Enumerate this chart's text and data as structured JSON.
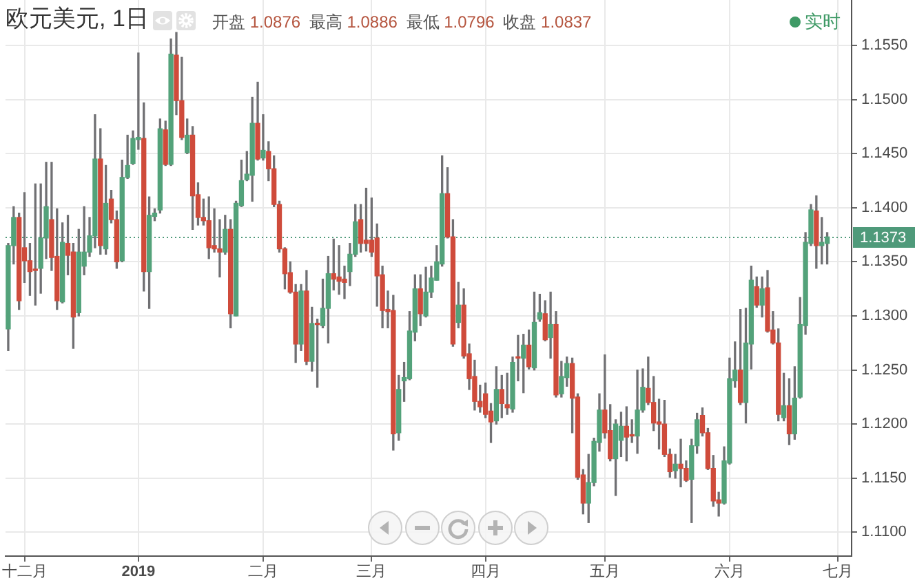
{
  "chart_data": {
    "type": "candlestick",
    "title": "欧元美元, 1日",
    "subtitle": "开盘 1.0876 最高 1.0886 最低 1.0796 收盘 1.0837",
    "annotations": [
      "实时"
    ],
    "categories": [
      null,
      null,
      null,
      "十二月",
      null,
      null,
      null,
      null,
      null,
      null,
      null,
      null,
      null,
      null,
      null,
      null,
      null,
      null,
      null,
      null,
      null,
      null,
      null,
      null,
      "2019",
      null,
      null,
      null,
      null,
      null,
      null,
      null,
      null,
      null,
      null,
      null,
      null,
      null,
      null,
      null,
      null,
      null,
      null,
      null,
      null,
      null,
      null,
      "二月",
      null,
      null,
      null,
      null,
      null,
      null,
      null,
      null,
      null,
      null,
      null,
      null,
      null,
      null,
      null,
      null,
      null,
      null,
      null,
      "三月",
      null,
      null,
      null,
      null,
      null,
      null,
      null,
      null,
      null,
      null,
      null,
      null,
      null,
      null,
      null,
      null,
      null,
      null,
      null,
      null,
      "四月",
      null,
      null,
      null,
      null,
      null,
      null,
      null,
      null,
      null,
      null,
      null,
      null,
      null,
      null,
      null,
      null,
      null,
      null,
      null,
      null,
      null,
      "五月",
      null,
      null,
      null,
      null,
      null,
      null,
      null,
      null,
      null,
      null,
      null,
      null,
      null,
      null,
      null,
      null,
      null,
      null,
      null,
      null,
      null,
      null,
      "六月",
      null,
      null,
      null,
      null,
      null,
      null,
      null,
      null,
      null,
      null,
      null,
      null,
      null,
      null,
      null,
      null,
      null,
      null,
      null,
      "七月",
      null,
      null
    ],
    "ohlc": [
      [
        1.1288,
        1.1367,
        1.1268,
        1.1365
      ],
      [
        1.1365,
        1.1401,
        1.1348,
        1.1391
      ],
      [
        1.1391,
        1.1395,
        1.1306,
        1.1314
      ],
      [
        1.1363,
        1.1414,
        1.1331,
        1.1351
      ],
      [
        1.1351,
        1.1367,
        1.1319,
        1.1341
      ],
      [
        1.1343,
        1.1422,
        1.131,
        1.1342
      ],
      [
        1.1344,
        1.1422,
        1.1321,
        1.1372
      ],
      [
        1.1372,
        1.1442,
        1.1353,
        1.1401
      ],
      [
        1.1389,
        1.1442,
        1.1342,
        1.1354
      ],
      [
        1.1355,
        1.1399,
        1.1306,
        1.1314
      ],
      [
        1.1313,
        1.1386,
        1.1312,
        1.1368
      ],
      [
        1.1367,
        1.1393,
        1.1338,
        1.1356
      ],
      [
        1.1359,
        1.1367,
        1.127,
        1.1299
      ],
      [
        1.1303,
        1.138,
        1.13,
        1.1359
      ],
      [
        1.1346,
        1.1401,
        1.1338,
        1.1359
      ],
      [
        1.1359,
        1.1391,
        1.1355,
        1.1374
      ],
      [
        1.1374,
        1.1486,
        1.1363,
        1.1445
      ],
      [
        1.1445,
        1.1473,
        1.1357,
        1.1365
      ],
      [
        1.1362,
        1.1439,
        1.1357,
        1.1404
      ],
      [
        1.1408,
        1.1416,
        1.1386,
        1.1389
      ],
      [
        1.1389,
        1.1397,
        1.1344,
        1.135
      ],
      [
        1.1351,
        1.1444,
        1.135,
        1.1428
      ],
      [
        1.1428,
        1.1467,
        1.1427,
        1.1439
      ],
      [
        1.1441,
        1.1471,
        1.144,
        1.1464
      ],
      [
        1.1463,
        1.1543,
        1.1454,
        1.1465
      ],
      [
        1.1464,
        1.1497,
        1.1323,
        1.1341
      ],
      [
        1.1341,
        1.141,
        1.1307,
        1.1393
      ],
      [
        1.1392,
        1.1399,
        1.1388,
        1.1395
      ],
      [
        1.1398,
        1.1482,
        1.1395,
        1.1473
      ],
      [
        1.1472,
        1.148,
        1.1439,
        1.144
      ],
      [
        1.144,
        1.1556,
        1.1439,
        1.1542
      ],
      [
        1.1541,
        1.1562,
        1.1486,
        1.1499
      ],
      [
        1.1499,
        1.1539,
        1.1463,
        1.1465
      ],
      [
        1.1451,
        1.1482,
        1.145,
        1.1467
      ],
      [
        1.1467,
        1.1475,
        1.138,
        1.1411
      ],
      [
        1.1412,
        1.1423,
        1.1384,
        1.1391
      ],
      [
        1.1391,
        1.1408,
        1.1384,
        1.1388
      ],
      [
        1.1388,
        1.141,
        1.1353,
        1.1363
      ],
      [
        1.1365,
        1.1399,
        1.1359,
        1.1362
      ],
      [
        1.1362,
        1.1389,
        1.1336,
        1.1359
      ],
      [
        1.1359,
        1.1393,
        1.1357,
        1.138
      ],
      [
        1.138,
        1.1389,
        1.1289,
        1.1302
      ],
      [
        1.13,
        1.1406,
        1.13,
        1.1404
      ],
      [
        1.1402,
        1.1444,
        1.1401,
        1.1425
      ],
      [
        1.1426,
        1.1452,
        1.1425,
        1.1431
      ],
      [
        1.143,
        1.1502,
        1.1406,
        1.1478
      ],
      [
        1.1478,
        1.1516,
        1.1444,
        1.1445
      ],
      [
        1.1446,
        1.1486,
        1.1444,
        1.1453
      ],
      [
        1.1452,
        1.1461,
        1.1425,
        1.1436
      ],
      [
        1.1436,
        1.1448,
        1.1401,
        1.1403
      ],
      [
        1.1403,
        1.1406,
        1.1359,
        1.1362
      ],
      [
        1.1362,
        1.1363,
        1.1325,
        1.1339
      ],
      [
        1.134,
        1.135,
        1.1321,
        1.1322
      ],
      [
        1.1322,
        1.1329,
        1.1257,
        1.1274
      ],
      [
        1.1274,
        1.1329,
        1.1268,
        1.1323
      ],
      [
        1.1323,
        1.1342,
        1.1255,
        1.1258
      ],
      [
        1.1258,
        1.1308,
        1.1249,
        1.1293
      ],
      [
        1.1293,
        1.1297,
        1.1234,
        1.1292
      ],
      [
        1.1291,
        1.1334,
        1.1289,
        1.1307
      ],
      [
        1.1307,
        1.1355,
        1.1275,
        1.1339
      ],
      [
        1.1339,
        1.1371,
        1.1324,
        1.1334
      ],
      [
        1.1336,
        1.1365,
        1.132,
        1.1332
      ],
      [
        1.1334,
        1.1346,
        1.1316,
        1.1331
      ],
      [
        1.1341,
        1.1367,
        1.1328,
        1.1357
      ],
      [
        1.1357,
        1.1403,
        1.1355,
        1.1387
      ],
      [
        1.1389,
        1.1403,
        1.1359,
        1.1367
      ],
      [
        1.137,
        1.1418,
        1.136,
        1.1367
      ],
      [
        1.137,
        1.1409,
        1.1355,
        1.1359
      ],
      [
        1.1372,
        1.1385,
        1.1309,
        1.1337
      ],
      [
        1.1338,
        1.1346,
        1.1289,
        1.1305
      ],
      [
        1.1306,
        1.1323,
        1.1289,
        1.1304
      ],
      [
        1.1305,
        1.1319,
        1.1176,
        1.1191
      ],
      [
        1.1192,
        1.1245,
        1.1185,
        1.1232
      ],
      [
        1.124,
        1.1257,
        1.1221,
        1.1243
      ],
      [
        1.1242,
        1.1304,
        1.1241,
        1.1286
      ],
      [
        1.1285,
        1.1338,
        1.1277,
        1.1325
      ],
      [
        1.1325,
        1.1338,
        1.1291,
        1.1302
      ],
      [
        1.13,
        1.1345,
        1.1299,
        1.1322
      ],
      [
        1.1322,
        1.1346,
        1.1317,
        1.1335
      ],
      [
        1.1333,
        1.1365,
        1.1333,
        1.135
      ],
      [
        1.1348,
        1.1448,
        1.1346,
        1.1413
      ],
      [
        1.1413,
        1.1437,
        1.1372,
        1.1373
      ],
      [
        1.1373,
        1.1389,
        1.1272,
        1.1274
      ],
      [
        1.1294,
        1.1331,
        1.1289,
        1.131
      ],
      [
        1.131,
        1.1325,
        1.1261,
        1.1263
      ],
      [
        1.1265,
        1.1274,
        1.1232,
        1.1242
      ],
      [
        1.1244,
        1.1259,
        1.1213,
        1.1221
      ],
      [
        1.1221,
        1.1236,
        1.1211,
        1.1216
      ],
      [
        1.1228,
        1.1238,
        1.1206,
        1.1209
      ],
      [
        1.1212,
        1.1219,
        1.1183,
        1.1202
      ],
      [
        1.1203,
        1.1253,
        1.12,
        1.1232
      ],
      [
        1.1232,
        1.1245,
        1.1206,
        1.1219
      ],
      [
        1.1218,
        1.1247,
        1.1209,
        1.1215
      ],
      [
        1.1214,
        1.1262,
        1.1211,
        1.1257
      ],
      [
        1.1262,
        1.1282,
        1.124,
        1.1261
      ],
      [
        1.1261,
        1.1283,
        1.1229,
        1.1273
      ],
      [
        1.1273,
        1.1287,
        1.1251,
        1.1253
      ],
      [
        1.1252,
        1.1322,
        1.125,
        1.1294
      ],
      [
        1.1297,
        1.132,
        1.1295,
        1.1303
      ],
      [
        1.1302,
        1.1314,
        1.1277,
        1.1278
      ],
      [
        1.128,
        1.1322,
        1.1261,
        1.1292
      ],
      [
        1.1292,
        1.1304,
        1.1225,
        1.1227
      ],
      [
        1.1228,
        1.1258,
        1.1225,
        1.1244
      ],
      [
        1.1243,
        1.1262,
        1.1235,
        1.1256
      ],
      [
        1.1256,
        1.1261,
        1.1192,
        1.1224
      ],
      [
        1.1225,
        1.1228,
        1.1149,
        1.1151
      ],
      [
        1.1153,
        1.1158,
        1.1117,
        1.1127
      ],
      [
        1.1127,
        1.1172,
        1.1109,
        1.1146
      ],
      [
        1.1146,
        1.1187,
        1.1143,
        1.1184
      ],
      [
        1.1183,
        1.1228,
        1.1175,
        1.1213
      ],
      [
        1.1213,
        1.1264,
        1.1187,
        1.1192
      ],
      [
        1.1194,
        1.1218,
        1.1166,
        1.1168
      ],
      [
        1.1168,
        1.1204,
        1.1134,
        1.12
      ],
      [
        1.1185,
        1.1211,
        1.117,
        1.1198
      ],
      [
        1.1198,
        1.1216,
        1.1166,
        1.1188
      ],
      [
        1.119,
        1.1204,
        1.1183,
        1.1189
      ],
      [
        1.1189,
        1.125,
        1.1173,
        1.1213
      ],
      [
        1.1213,
        1.1251,
        1.1211,
        1.1234
      ],
      [
        1.1233,
        1.1262,
        1.1218,
        1.122
      ],
      [
        1.122,
        1.1244,
        1.1194,
        1.1201
      ],
      [
        1.1202,
        1.1223,
        1.1177,
        1.12
      ],
      [
        1.12,
        1.1222,
        1.117,
        1.1172
      ],
      [
        1.1172,
        1.1177,
        1.1151,
        1.1156
      ],
      [
        1.1157,
        1.1172,
        1.115,
        1.1163
      ],
      [
        1.1163,
        1.1186,
        1.1142,
        1.1159
      ],
      [
        1.1159,
        1.1166,
        1.1147,
        1.1148
      ],
      [
        1.1149,
        1.1186,
        1.1109,
        1.118
      ],
      [
        1.118,
        1.121,
        1.1173,
        1.1204
      ],
      [
        1.1208,
        1.1215,
        1.1189,
        1.1192
      ],
      [
        1.1192,
        1.1196,
        1.1158,
        1.1159
      ],
      [
        1.1159,
        1.1171,
        1.1124,
        1.1129
      ],
      [
        1.113,
        1.1137,
        1.1115,
        1.1127
      ],
      [
        1.1127,
        1.1179,
        1.1126,
        1.1166
      ],
      [
        1.1164,
        1.1261,
        1.1163,
        1.1242
      ],
      [
        1.124,
        1.1276,
        1.1234,
        1.125
      ],
      [
        1.125,
        1.1306,
        1.1218,
        1.122
      ],
      [
        1.122,
        1.1307,
        1.1201,
        1.1275
      ],
      [
        1.1274,
        1.1346,
        1.1251,
        1.1333
      ],
      [
        1.1327,
        1.1336,
        1.1308,
        1.131
      ],
      [
        1.131,
        1.1336,
        1.1299,
        1.1325
      ],
      [
        1.1326,
        1.1342,
        1.1285,
        1.1286
      ],
      [
        1.1287,
        1.1304,
        1.1274,
        1.1275
      ],
      [
        1.1275,
        1.1288,
        1.1203,
        1.1209
      ],
      [
        1.1206,
        1.1247,
        1.1203,
        1.1217
      ],
      [
        1.1217,
        1.1242,
        1.1181,
        1.1191
      ],
      [
        1.1191,
        1.1253,
        1.1186,
        1.1224
      ],
      [
        1.1225,
        1.1317,
        1.1224,
        1.1292
      ],
      [
        1.1291,
        1.1377,
        1.1283,
        1.1368
      ],
      [
        1.1367,
        1.1403,
        1.1365,
        1.1398
      ],
      [
        1.1397,
        1.1411,
        1.1344,
        1.1365
      ],
      [
        1.1365,
        1.1391,
        1.1348,
        1.1368
      ],
      [
        1.1367,
        1.1377,
        1.1348,
        1.1373
      ],
      null,
      null,
      null,
      null
    ],
    "colors": [
      "#53a27a",
      "#53a27a",
      "#cf4b3b",
      "#cf4b3b",
      "#cf4b3b",
      "#cf4b3b",
      "#53a27a",
      "#53a27a",
      "#cf4b3b",
      "#cf4b3b",
      "#53a27a",
      "#cf4b3b",
      "#cf4b3b",
      "#53a27a",
      "#53a27a",
      "#53a27a",
      "#53a27a",
      "#cf4b3b",
      "#53a27a",
      "#cf4b3b",
      "#cf4b3b",
      "#53a27a",
      "#53a27a",
      "#53a27a",
      "#53a27a",
      "#cf4b3b",
      "#53a27a",
      "#53a27a",
      "#53a27a",
      "#cf4b3b",
      "#53a27a",
      "#cf4b3b",
      "#cf4b3b",
      "#53a27a",
      "#cf4b3b",
      "#cf4b3b",
      "#cf4b3b",
      "#cf4b3b",
      "#cf4b3b",
      "#cf4b3b",
      "#53a27a",
      "#cf4b3b",
      "#53a27a",
      "#53a27a",
      "#53a27a",
      "#53a27a",
      "#cf4b3b",
      "#53a27a",
      "#cf4b3b",
      "#cf4b3b",
      "#cf4b3b",
      "#cf4b3b",
      "#cf4b3b",
      "#cf4b3b",
      "#53a27a",
      "#cf4b3b",
      "#53a27a",
      "#cf4b3b",
      "#53a27a",
      "#53a27a",
      "#cf4b3b",
      "#cf4b3b",
      "#cf4b3b",
      "#53a27a",
      "#53a27a",
      "#cf4b3b",
      "#cf4b3b",
      "#cf4b3b",
      "#cf4b3b",
      "#cf4b3b",
      "#cf4b3b",
      "#cf4b3b",
      "#53a27a",
      "#53a27a",
      "#53a27a",
      "#53a27a",
      "#cf4b3b",
      "#53a27a",
      "#53a27a",
      "#53a27a",
      "#53a27a",
      "#cf4b3b",
      "#cf4b3b",
      "#53a27a",
      "#cf4b3b",
      "#cf4b3b",
      "#cf4b3b",
      "#cf4b3b",
      "#cf4b3b",
      "#cf4b3b",
      "#53a27a",
      "#cf4b3b",
      "#cf4b3b",
      "#53a27a",
      "#cf4b3b",
      "#53a27a",
      "#cf4b3b",
      "#53a27a",
      "#53a27a",
      "#cf4b3b",
      "#53a27a",
      "#cf4b3b",
      "#53a27a",
      "#53a27a",
      "#cf4b3b",
      "#cf4b3b",
      "#cf4b3b",
      "#53a27a",
      "#53a27a",
      "#53a27a",
      "#cf4b3b",
      "#cf4b3b",
      "#53a27a",
      "#53a27a",
      "#cf4b3b",
      "#cf4b3b",
      "#53a27a",
      "#53a27a",
      "#cf4b3b",
      "#cf4b3b",
      "#cf4b3b",
      "#cf4b3b",
      "#cf4b3b",
      "#53a27a",
      "#cf4b3b",
      "#cf4b3b",
      "#53a27a",
      "#53a27a",
      "#cf4b3b",
      "#cf4b3b",
      "#cf4b3b",
      "#cf4b3b",
      "#53a27a",
      "#53a27a",
      "#53a27a",
      "#cf4b3b",
      "#53a27a",
      "#53a27a",
      "#cf4b3b",
      "#53a27a",
      "#cf4b3b",
      "#cf4b3b",
      "#cf4b3b",
      "#53a27a",
      "#cf4b3b",
      "#53a27a",
      "#53a27a",
      "#53a27a",
      "#53a27a",
      "#cf4b3b",
      "#53a27a",
      "#53a27a",
      null,
      null,
      null,
      null
    ],
    "ylim": [
      1.1078,
      1.1592
    ],
    "yticks": [
      {
        "value": 1.11,
        "label": "1.1100"
      },
      {
        "value": 1.115,
        "label": "1.1150"
      },
      {
        "value": 1.12,
        "label": "1.1200"
      },
      {
        "value": 1.125,
        "label": "1.1250"
      },
      {
        "value": 1.13,
        "label": "1.1300"
      },
      {
        "value": 1.135,
        "label": "1.1350"
      },
      {
        "value": 1.14,
        "label": "1.1400"
      },
      {
        "value": 1.145,
        "label": "1.1450"
      },
      {
        "value": 1.15,
        "label": "1.1500"
      },
      {
        "value": 1.155,
        "label": "1.1550"
      }
    ],
    "ref_lines": [
      {
        "axis": "y",
        "value": 1.1373,
        "label": "1.1373",
        "color": "#4f9a7a",
        "line_style": "dotted"
      }
    ],
    "grid": true
  }
}
